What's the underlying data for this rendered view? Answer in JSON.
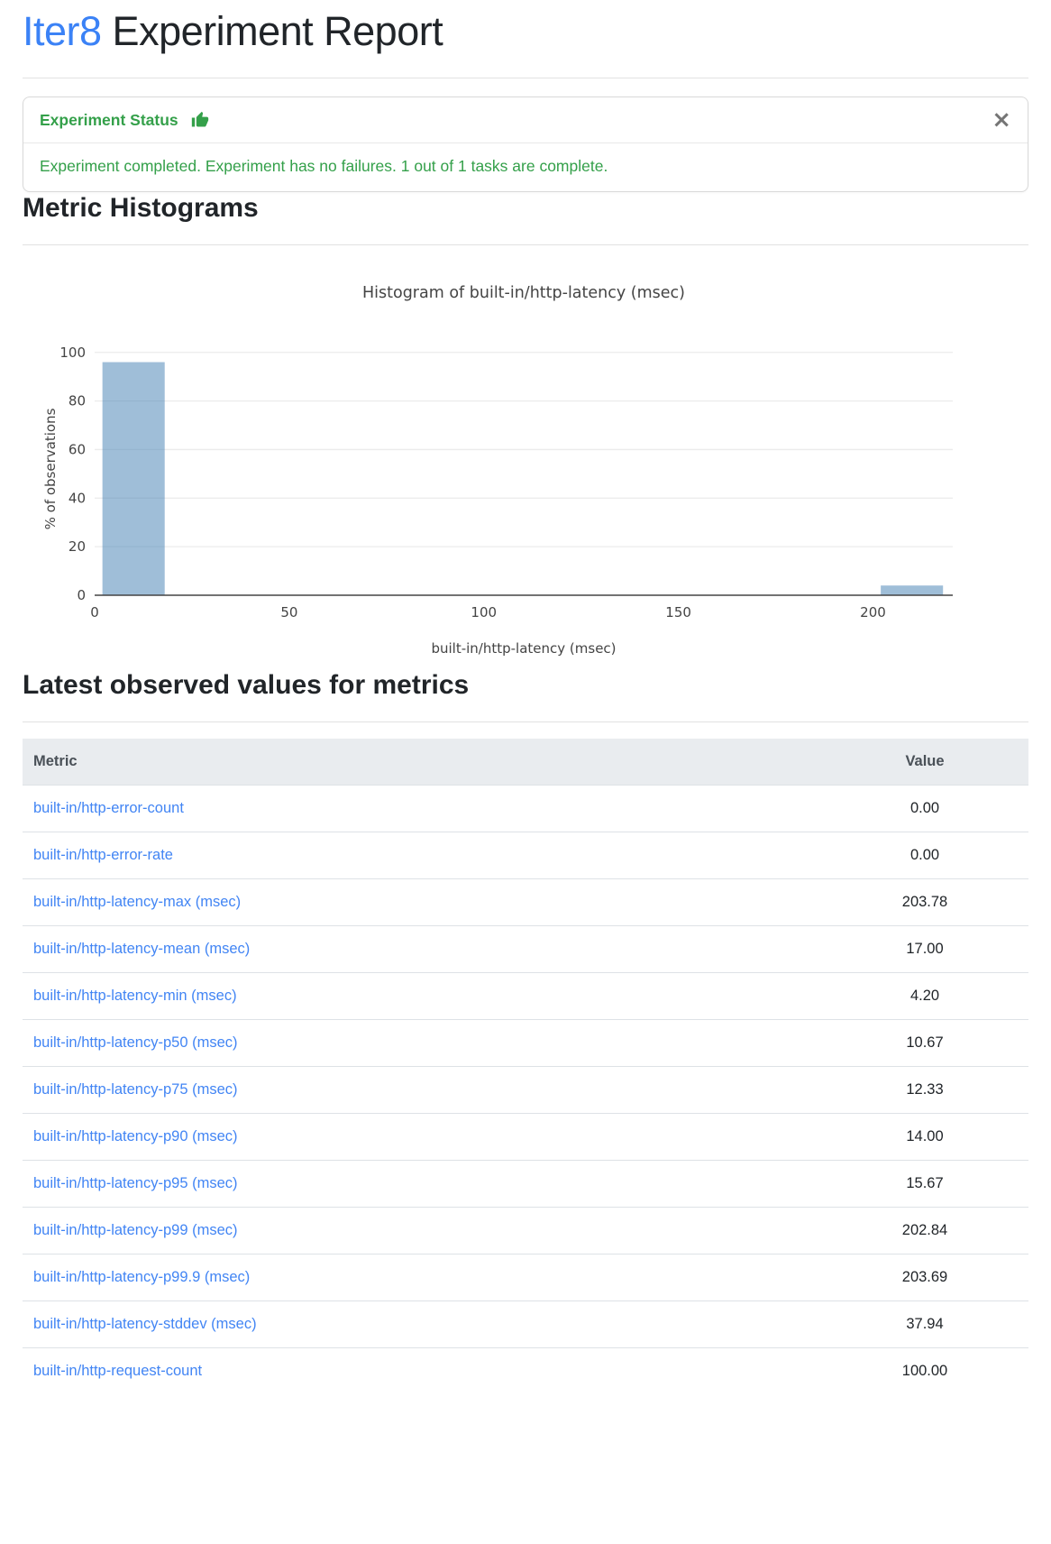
{
  "page": {
    "title_brand": "Iter8",
    "title_rest": " Experiment Report",
    "brand_color": "#3b82f6",
    "link_color": "#4285f4"
  },
  "status_alert": {
    "header": "Experiment Status",
    "icon": "thumbs-up-icon",
    "close_icon": "×",
    "message": "Experiment completed. Experiment has no failures. 1 out of 1 tasks are complete.",
    "green_color": "#34a04a"
  },
  "sections": {
    "histograms_heading": "Metric Histograms",
    "metrics_heading": "Latest observed values for metrics"
  },
  "chart_data": {
    "type": "bar",
    "title": "Histogram of built-in/http-latency (msec)",
    "xlabel": "built-in/http-latency (msec)",
    "ylabel": "% of observations",
    "x_range": [
      0,
      220.5
    ],
    "y_range": [
      0,
      104
    ],
    "x_ticks": [
      0,
      50,
      100,
      150,
      200
    ],
    "y_ticks": [
      0,
      20,
      40,
      60,
      80,
      100
    ],
    "bins": [
      {
        "from": 0,
        "to": 20,
        "percent": 96
      },
      {
        "from": 200,
        "to": 220,
        "percent": 4
      }
    ],
    "bar_inner_gap": 0.2,
    "bar_color": "rgba(70,130,180,0.52)",
    "grid_color": "#ececec",
    "axis_color": "#444444",
    "text_color": "#444444",
    "grid": true,
    "legend": "none"
  },
  "metrics_table": {
    "columns": [
      "Metric",
      "Value"
    ],
    "rows": [
      {
        "metric": "built-in/http-error-count",
        "value": "0.00"
      },
      {
        "metric": "built-in/http-error-rate",
        "value": "0.00"
      },
      {
        "metric": "built-in/http-latency-max (msec)",
        "value": "203.78"
      },
      {
        "metric": "built-in/http-latency-mean (msec)",
        "value": "17.00"
      },
      {
        "metric": "built-in/http-latency-min (msec)",
        "value": "4.20"
      },
      {
        "metric": "built-in/http-latency-p50 (msec)",
        "value": "10.67"
      },
      {
        "metric": "built-in/http-latency-p75 (msec)",
        "value": "12.33"
      },
      {
        "metric": "built-in/http-latency-p90 (msec)",
        "value": "14.00"
      },
      {
        "metric": "built-in/http-latency-p95 (msec)",
        "value": "15.67"
      },
      {
        "metric": "built-in/http-latency-p99 (msec)",
        "value": "202.84"
      },
      {
        "metric": "built-in/http-latency-p99.9 (msec)",
        "value": "203.69"
      },
      {
        "metric": "built-in/http-latency-stddev (msec)",
        "value": "37.94"
      },
      {
        "metric": "built-in/http-request-count",
        "value": "100.00"
      }
    ]
  }
}
